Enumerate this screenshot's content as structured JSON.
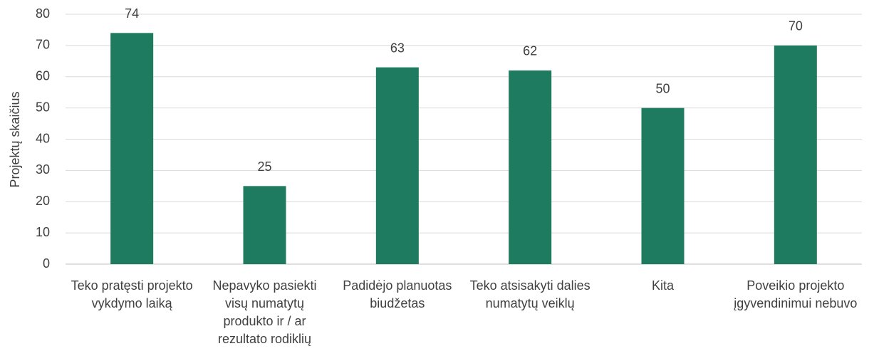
{
  "chart_data": {
    "type": "bar",
    "y_label": "Projektų skaičius",
    "categories": [
      "Teko pratęsti projekto vykdymo laiką",
      "Nepavyko pasiekti visų numatytų produkto ir / ar rezultato rodiklių",
      "Padidėjo planuotas biudžetas",
      "Teko atsisakyti dalies numatytų veiklų",
      "Kita",
      "Poveikio projekto įgyvendinimui nebuvo"
    ],
    "values": [
      74,
      25,
      63,
      62,
      50,
      70
    ],
    "color": "#1e7b5f",
    "ylim": [
      0,
      80
    ],
    "yticks": [
      0,
      10,
      20,
      30,
      40,
      50,
      60,
      70,
      80
    ],
    "grid": true
  }
}
